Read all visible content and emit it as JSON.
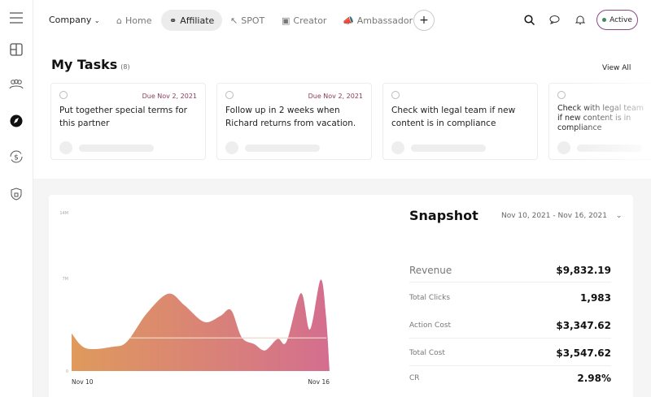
{
  "topbar": {
    "company": "Company",
    "nav": [
      {
        "label": "Home",
        "icon": "home-icon"
      },
      {
        "label": "Affiliate",
        "icon": "affiliate-icon",
        "active": true
      },
      {
        "label": "SPOT",
        "icon": "cursor-icon"
      },
      {
        "label": "Creator",
        "icon": "creator-icon"
      },
      {
        "label": "Ambassador",
        "icon": "megaphone-icon"
      }
    ],
    "add": "+",
    "status": "Active",
    "status_color": "#3e8a5c"
  },
  "sidebar": {
    "items": [
      "menu-icon",
      "layout-icon",
      "people-icon",
      "compass-icon",
      "dollar-cycle-icon",
      "shield-icon"
    ]
  },
  "tasks": {
    "title": "My Tasks",
    "count": "(8)",
    "view_all": "View All",
    "items": [
      {
        "due": "Due Nov 2, 2021",
        "text": "Put together special terms for this partner"
      },
      {
        "due": "Due Nov 2, 2021",
        "text": "Follow up in 2 weeks when Richard returns from vacation."
      },
      {
        "due": "",
        "text": "Check with legal team if new content is in compliance"
      },
      {
        "due": "",
        "text": "Check with legal team if new content is in compliance"
      }
    ]
  },
  "snapshot": {
    "title": "Snapshot",
    "range": "Nov 10, 2021 - Nov 16, 2021",
    "metrics": [
      {
        "label": "Revenue",
        "value": "$9,832.19"
      },
      {
        "label": "Total Clicks",
        "value": "1,983"
      },
      {
        "label": "Action Cost",
        "value": "$3,347.62"
      },
      {
        "label": "Total Cost",
        "value": "$3,547.62"
      },
      {
        "label": "CR",
        "value": "2.98%"
      }
    ]
  },
  "chart_data": {
    "type": "area",
    "x_tick_labels": [
      "Nov 10",
      "Nov 16"
    ],
    "y_tick_labels": [
      "0",
      "7M",
      "14M"
    ],
    "colors": [
      "#df9a5c",
      "#d46e8f"
    ],
    "reference_line": 2.5,
    "x": [
      "2021-11-10T00:00",
      "2021-11-10T08:00",
      "2021-11-10T23:00",
      "2021-11-11T07:00",
      "2021-11-11T18:00",
      "2021-11-12T06:00",
      "2021-11-12T15:00",
      "2021-11-13T02:00",
      "2021-11-13T11:00",
      "2021-11-13T17:00",
      "2021-11-13T23:00",
      "2021-11-14T06:00",
      "2021-11-14T12:00",
      "2021-11-14T19:00",
      "2021-11-15T00:00",
      "2021-11-15T08:00",
      "2021-11-15T13:00",
      "2021-11-15T19:00",
      "2021-11-15T22:00",
      "2021-11-16T00:00"
    ],
    "values": [
      2.84,
      1.72,
      1.83,
      2.23,
      4.36,
      5.84,
      4.97,
      3.71,
      4.16,
      4.6,
      2.54,
      2.03,
      1.56,
      2.43,
      2.23,
      5.88,
      3.14,
      6.9,
      4.16,
      0
    ],
    "unit": "M"
  }
}
